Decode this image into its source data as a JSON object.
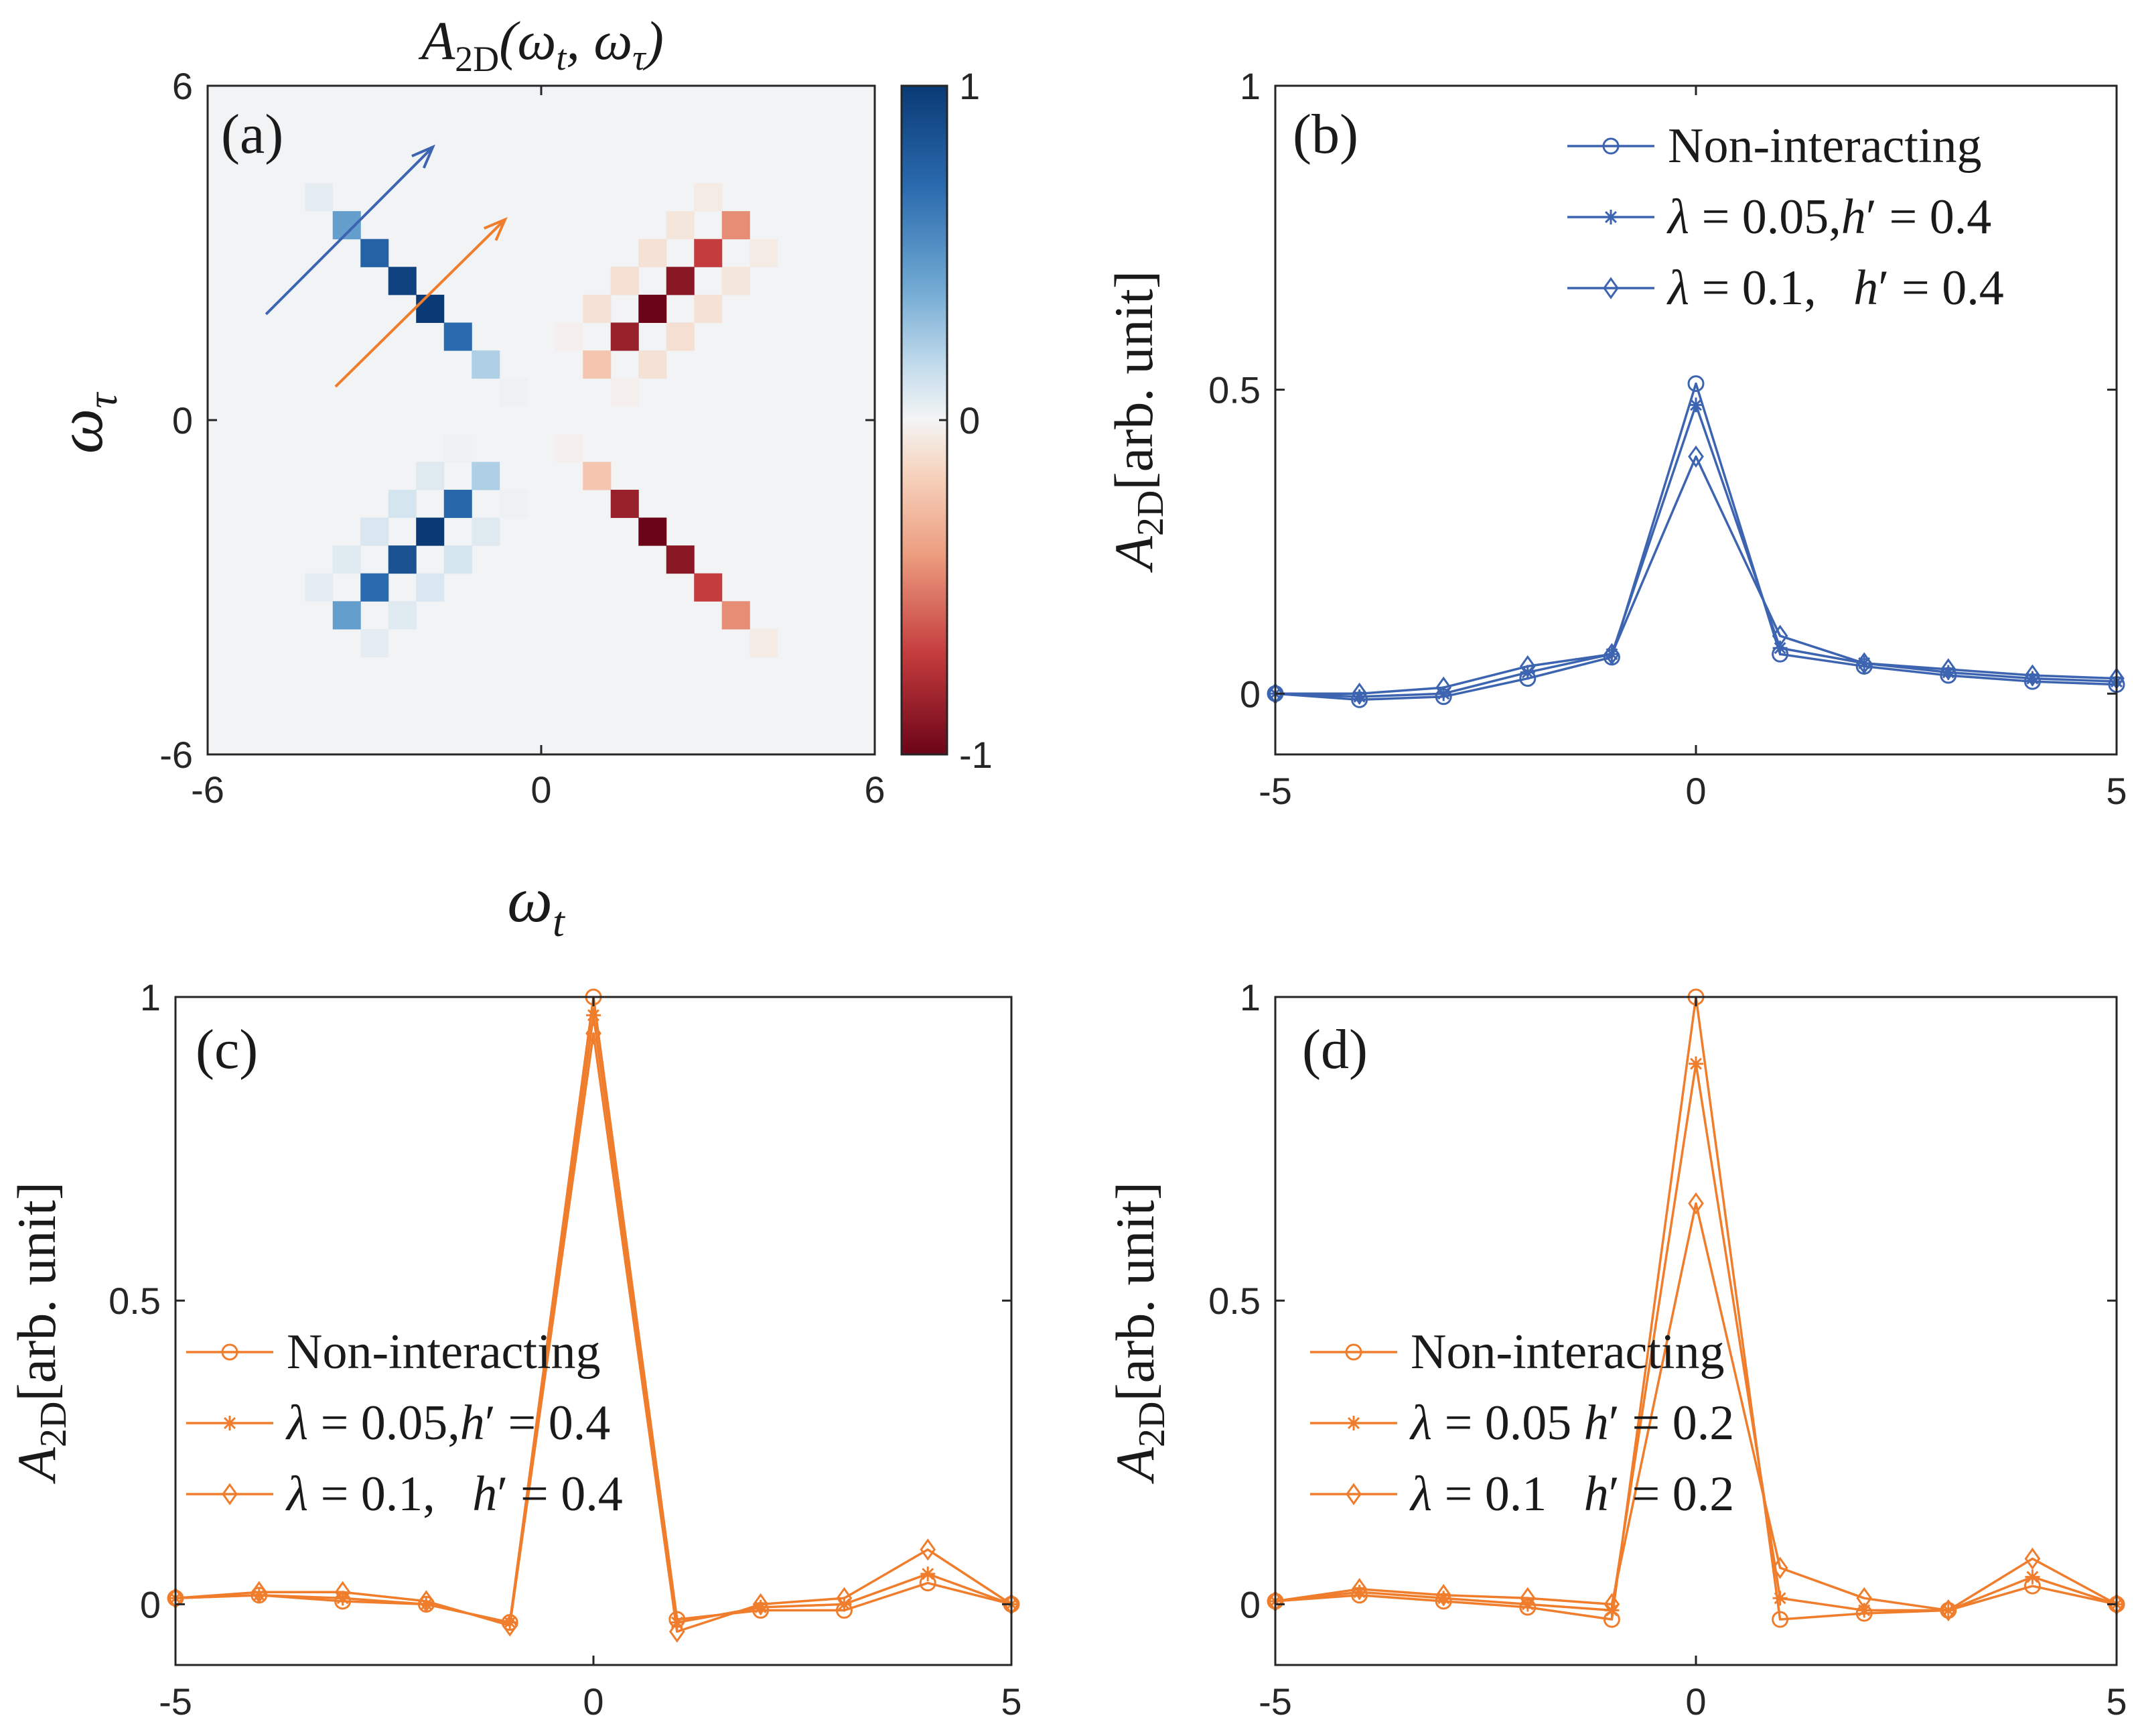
{
  "colors": {
    "blue": "#3d64b0",
    "orange": "#ef7d2c",
    "axis": "#262626",
    "cmap_positive": "#0a3a75",
    "cmap_mid": "#f4f4f4",
    "cmap_negative": "#6b0418"
  },
  "chart_data": [
    {
      "id": "a",
      "type": "heatmap",
      "panel_label": "(a)",
      "title": "A_2D(ω_t, ω_τ)",
      "title_parts": {
        "base": "A",
        "sub": "2D",
        "args": "(ω",
        "sub_t": "t",
        "comma": ", ω",
        "sub_tau": "τ",
        "close": ")"
      },
      "xlabel": "ω_t",
      "xlabel_parts": {
        "base": "ω",
        "sub": "t"
      },
      "ylabel": "ω_τ",
      "ylabel_parts": {
        "base": "ω",
        "sub": "τ"
      },
      "xlim": [
        -6,
        6
      ],
      "ylim": [
        -6,
        6
      ],
      "xticks": [
        "-6",
        "0",
        "6"
      ],
      "yticks": [
        "-6",
        "0",
        "6"
      ],
      "colorbar": {
        "ticks": [
          "1",
          "0",
          "-1"
        ],
        "range": [
          -1,
          1
        ]
      },
      "peaks": [
        {
          "w_t": -3.5,
          "w_tau": 3.5,
          "value": 0.45
        },
        {
          "w_t": -3.0,
          "w_tau": 3.0,
          "value": 0.75
        },
        {
          "w_t": -2.5,
          "w_tau": 2.5,
          "value": 0.95
        },
        {
          "w_t": -2.0,
          "w_tau": 2.0,
          "value": 1.0
        },
        {
          "w_t": -1.5,
          "w_tau": 1.5,
          "value": 0.7
        },
        {
          "w_t": -1.0,
          "w_tau": 1.0,
          "value": 0.22
        },
        {
          "w_t": -3.5,
          "w_tau": -3.5,
          "value": 0.45
        },
        {
          "w_t": -3.0,
          "w_tau": -3.0,
          "value": 0.7
        },
        {
          "w_t": -2.5,
          "w_tau": -2.5,
          "value": 0.85
        },
        {
          "w_t": -2.0,
          "w_tau": -2.0,
          "value": 1.0
        },
        {
          "w_t": -1.5,
          "w_tau": -1.5,
          "value": 0.72
        },
        {
          "w_t": -1.0,
          "w_tau": -1.0,
          "value": 0.22
        },
        {
          "w_t": 1.0,
          "w_tau": 1.0,
          "value": -0.22
        },
        {
          "w_t": 1.5,
          "w_tau": 1.5,
          "value": -0.85
        },
        {
          "w_t": 2.0,
          "w_tau": 2.0,
          "value": -1.0
        },
        {
          "w_t": 2.5,
          "w_tau": 2.5,
          "value": -0.9
        },
        {
          "w_t": 3.0,
          "w_tau": 3.0,
          "value": -0.7
        },
        {
          "w_t": 3.5,
          "w_tau": 3.5,
          "value": -0.45
        },
        {
          "w_t": 1.0,
          "w_tau": -1.0,
          "value": -0.22
        },
        {
          "w_t": 1.5,
          "w_tau": -1.5,
          "value": -0.85
        },
        {
          "w_t": 2.0,
          "w_tau": -2.0,
          "value": -1.0
        },
        {
          "w_t": 2.5,
          "w_tau": -2.5,
          "value": -0.9
        },
        {
          "w_t": 3.0,
          "w_tau": -3.0,
          "value": -0.7
        },
        {
          "w_t": 3.5,
          "w_tau": -3.5,
          "value": -0.45
        }
      ],
      "arrows": [
        {
          "color": "blue",
          "from": [
            -4.95,
            1.9
          ],
          "to": [
            -1.95,
            4.9
          ]
        },
        {
          "color": "orange",
          "from": [
            -3.7,
            0.6
          ],
          "to": [
            -0.65,
            3.6
          ]
        }
      ]
    },
    {
      "id": "b",
      "type": "line",
      "panel_label": "(b)",
      "color": "blue",
      "ylabel": "A_2D[arb. unit]",
      "xlim": [
        -5,
        5
      ],
      "ylim": [
        -0.1,
        1
      ],
      "xticks": [
        "-5",
        "0",
        "5"
      ],
      "yticks": [
        "0",
        "0.5",
        "1"
      ],
      "legend_position": "top-right",
      "x": [
        -5,
        -4,
        -3,
        -2,
        -1,
        0,
        1,
        2,
        3,
        4,
        5
      ],
      "series": [
        {
          "name": "Non-interacting",
          "marker": "circle",
          "values": [
            0.0,
            -0.01,
            -0.005,
            0.025,
            0.06,
            0.51,
            0.065,
            0.045,
            0.03,
            0.02,
            0.015
          ]
        },
        {
          "name": "λ = 0.05, h′ = 0.4",
          "marker": "asterisk",
          "values": [
            0.0,
            -0.005,
            0.0,
            0.035,
            0.065,
            0.475,
            0.075,
            0.05,
            0.035,
            0.025,
            0.02
          ]
        },
        {
          "name": "λ = 0.1,   h′ = 0.4",
          "marker": "diamond",
          "values": [
            0.0,
            0.0,
            0.01,
            0.045,
            0.065,
            0.39,
            0.095,
            0.05,
            0.04,
            0.03,
            0.025
          ]
        }
      ]
    },
    {
      "id": "c",
      "type": "line",
      "panel_label": "(c)",
      "color": "orange",
      "ylabel": "A_2D[arb. unit]",
      "xlim": [
        -5,
        5
      ],
      "ylim": [
        -0.1,
        1
      ],
      "xticks": [
        "-5",
        "0",
        "5"
      ],
      "yticks": [
        "0",
        "0.5",
        "1"
      ],
      "legend_position": "middle-left",
      "x": [
        -5,
        -4,
        -3,
        -2,
        -1,
        0,
        1,
        2,
        3,
        4,
        5
      ],
      "series": [
        {
          "name": "Non-interacting",
          "marker": "circle",
          "values": [
            0.01,
            0.015,
            0.005,
            0.0,
            -0.03,
            1.0,
            -0.025,
            -0.01,
            -0.01,
            0.035,
            0.0
          ]
        },
        {
          "name": "λ = 0.05, h′ = 0.4",
          "marker": "asterisk",
          "values": [
            0.01,
            0.015,
            0.01,
            0.0,
            -0.03,
            0.97,
            -0.03,
            -0.005,
            0.0,
            0.05,
            0.0
          ]
        },
        {
          "name": "λ = 0.1,   h′ = 0.4",
          "marker": "diamond",
          "values": [
            0.01,
            0.02,
            0.02,
            0.005,
            -0.035,
            0.94,
            -0.045,
            0.0,
            0.01,
            0.09,
            0.0
          ]
        }
      ]
    },
    {
      "id": "d",
      "type": "line",
      "panel_label": "(d)",
      "color": "orange",
      "ylabel": "A_2D[arb. unit]",
      "xlim": [
        -5,
        5
      ],
      "ylim": [
        -0.1,
        1
      ],
      "xticks": [
        "-5",
        "0",
        "5"
      ],
      "yticks": [
        "0",
        "0.5",
        "1"
      ],
      "legend_position": "middle-left",
      "x": [
        -5,
        -4,
        -3,
        -2,
        -1,
        0,
        1,
        2,
        3,
        4,
        5
      ],
      "series": [
        {
          "name": "Non-interacting",
          "marker": "circle",
          "values": [
            0.005,
            0.015,
            0.005,
            -0.005,
            -0.025,
            1.0,
            -0.025,
            -0.015,
            -0.01,
            0.03,
            0.0
          ]
        },
        {
          "name": "λ = 0.05 h′ = 0.2",
          "marker": "asterisk",
          "values": [
            0.005,
            0.02,
            0.01,
            0.0,
            -0.01,
            0.89,
            0.01,
            -0.01,
            -0.01,
            0.045,
            0.0
          ]
        },
        {
          "name": "λ = 0.1    h′ = 0.2",
          "marker": "diamond",
          "values": [
            0.005,
            0.025,
            0.015,
            0.01,
            0.0,
            0.66,
            0.06,
            0.01,
            -0.01,
            0.075,
            0.0
          ]
        }
      ]
    }
  ]
}
